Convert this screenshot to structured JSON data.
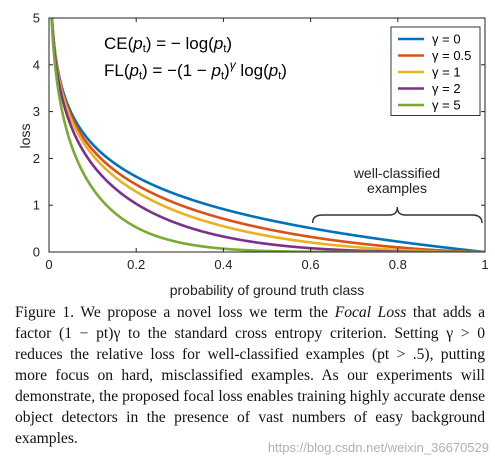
{
  "chart_data": {
    "type": "line",
    "xlabel": "probability of ground truth class",
    "ylabel": "loss",
    "xlim": [
      0,
      1
    ],
    "ylim": [
      0,
      5
    ],
    "x_ticks": [
      "0",
      "0.2",
      "0.4",
      "0.6",
      "0.8",
      "1"
    ],
    "y_ticks": [
      "0",
      "1",
      "2",
      "3",
      "4",
      "5"
    ],
    "grid": false,
    "legend_position": "top-right",
    "series": [
      {
        "name": "γ = 0",
        "gamma": 0,
        "color": "#0072BD"
      },
      {
        "name": "γ = 0.5",
        "gamma": 0.5,
        "color": "#D95319"
      },
      {
        "name": "γ = 1",
        "gamma": 1,
        "color": "#EDB120"
      },
      {
        "name": "γ = 2",
        "gamma": 2,
        "color": "#7E2F8E"
      },
      {
        "name": "γ = 5",
        "gamma": 5,
        "color": "#77AC30"
      }
    ],
    "equations": {
      "ce": "CE(pt) = − log(pt)",
      "fl": "FL(pt) = −(1 − pt)γ log(pt)"
    },
    "annotation": {
      "line1": "well-classified",
      "line2": "examples",
      "range": [
        0.6,
        1.0
      ]
    }
  },
  "caption": {
    "label": "Figure 1.",
    "text_before": "We propose a novel loss we term the",
    "emphasis": "Focal Loss",
    "text_after": "that adds a factor (1 − pt)γ to the standard cross entropy criterion. Setting γ > 0 reduces the relative loss for well-classified examples (pt > .5), putting more focus on hard, misclassified examples. As our experiments will demonstrate, the proposed focal loss enables training highly accurate dense object detectors in the presence of vast numbers of easy background examples."
  },
  "watermark": "https://blog.csdn.net/weixin_36670529"
}
